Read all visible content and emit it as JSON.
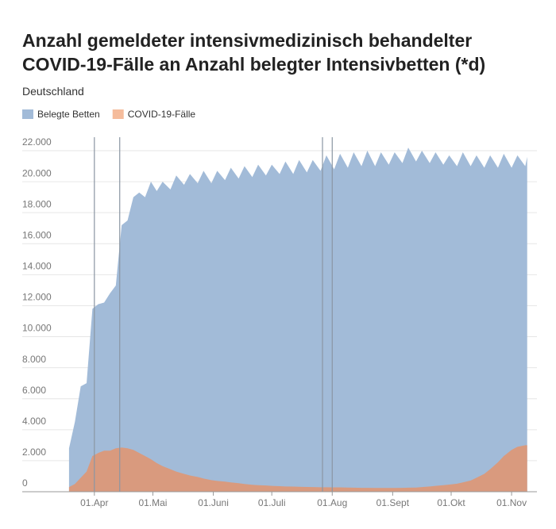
{
  "chart_data": {
    "type": "area",
    "title": "Anzahl gemeldeter intensivmedizinisch behandelter COVID-19-Fälle an Anzahl belegter Intensivbetten (*d)",
    "subtitle": "Deutschland",
    "x": [
      "03-19",
      "03-22",
      "03-25",
      "03-28",
      "03-31",
      "04-03",
      "04-06",
      "04-09",
      "04-12",
      "04-15",
      "04-18",
      "04-21",
      "04-24",
      "04-27",
      "04-30",
      "05-03",
      "05-06",
      "05-10",
      "05-13",
      "05-17",
      "05-20",
      "05-24",
      "05-27",
      "05-31",
      "06-03",
      "06-07",
      "06-10",
      "06-14",
      "06-17",
      "06-21",
      "06-24",
      "06-28",
      "07-01",
      "07-05",
      "07-08",
      "07-12",
      "07-15",
      "07-19",
      "07-22",
      "07-26",
      "07-29",
      "08-02",
      "08-05",
      "08-09",
      "08-12",
      "08-16",
      "08-19",
      "08-23",
      "08-26",
      "08-30",
      "09-02",
      "09-06",
      "09-09",
      "09-13",
      "09-16",
      "09-20",
      "09-23",
      "09-27",
      "09-30",
      "10-04",
      "10-07",
      "10-11",
      "10-14",
      "10-18",
      "10-21",
      "10-25",
      "10-28",
      "11-01",
      "11-04",
      "11-08",
      "11-09"
    ],
    "series": [
      {
        "name": "Belegte Betten",
        "color": "#a2bbd8",
        "values": [
          2800,
          4500,
          6800,
          7000,
          11800,
          12100,
          12200,
          12800,
          13300,
          17200,
          17500,
          19000,
          19300,
          19000,
          20000,
          19400,
          20000,
          19500,
          20400,
          19800,
          20500,
          19900,
          20700,
          19900,
          20700,
          20100,
          20900,
          20200,
          21000,
          20300,
          21100,
          20400,
          21100,
          20500,
          21300,
          20500,
          21400,
          20600,
          21400,
          20700,
          21700,
          20800,
          21800,
          20900,
          21900,
          21000,
          22000,
          21000,
          21900,
          21100,
          21900,
          21200,
          22200,
          21300,
          22000,
          21200,
          21900,
          21100,
          21700,
          21000,
          21900,
          21000,
          21700,
          20900,
          21700,
          20900,
          21800,
          20900,
          21700,
          21000,
          21600
        ]
      },
      {
        "name": "COVID-19-Fälle",
        "color": "#d99a7e",
        "values": [
          300,
          500,
          900,
          1300,
          2300,
          2500,
          2650,
          2650,
          2800,
          2850,
          2800,
          2700,
          2500,
          2300,
          2100,
          1850,
          1650,
          1450,
          1300,
          1150,
          1050,
          950,
          850,
          750,
          700,
          650,
          600,
          550,
          500,
          450,
          420,
          400,
          380,
          360,
          340,
          330,
          320,
          310,
          300,
          290,
          290,
          280,
          280,
          270,
          260,
          250,
          250,
          240,
          240,
          240,
          240,
          250,
          260,
          270,
          300,
          340,
          380,
          420,
          460,
          520,
          600,
          720,
          900,
          1150,
          1450,
          1900,
          2300,
          2700,
          2900,
          3000,
          3000
        ]
      }
    ],
    "legend_colors": [
      "#a2bbd8",
      "#f5bc9c"
    ],
    "xlim": [
      "02-24",
      "11-14"
    ],
    "xticks": [
      {
        "value": "04-01",
        "label": "01.Apr"
      },
      {
        "value": "05-01",
        "label": "01.Mai"
      },
      {
        "value": "06-01",
        "label": "01.Juni"
      },
      {
        "value": "07-01",
        "label": "01.Juli"
      },
      {
        "value": "08-01",
        "label": "01.Aug"
      },
      {
        "value": "09-01",
        "label": "01.Sept"
      },
      {
        "value": "10-01",
        "label": "01.Okt"
      },
      {
        "value": "11-01",
        "label": "01.Nov"
      }
    ],
    "vlines": [
      "04-01",
      "04-14",
      "07-27",
      "08-01"
    ],
    "ylim": [
      0,
      22000
    ],
    "yticks": [
      0,
      {
        "value": 2000,
        "label": "2.000"
      },
      {
        "value": 4000,
        "label": "4.000"
      },
      {
        "value": 6000,
        "label": "6.000"
      },
      {
        "value": 8000,
        "label": "8.000"
      },
      {
        "value": 10000,
        "label": "10.000"
      },
      {
        "value": 12000,
        "label": "12.000"
      },
      {
        "value": 14000,
        "label": "14.000"
      },
      {
        "value": 16000,
        "label": "16.000"
      },
      {
        "value": 18000,
        "label": "18.000"
      },
      {
        "value": 20000,
        "label": "20.000"
      },
      {
        "value": 22000,
        "label": "22.000"
      }
    ],
    "grid": true
  }
}
